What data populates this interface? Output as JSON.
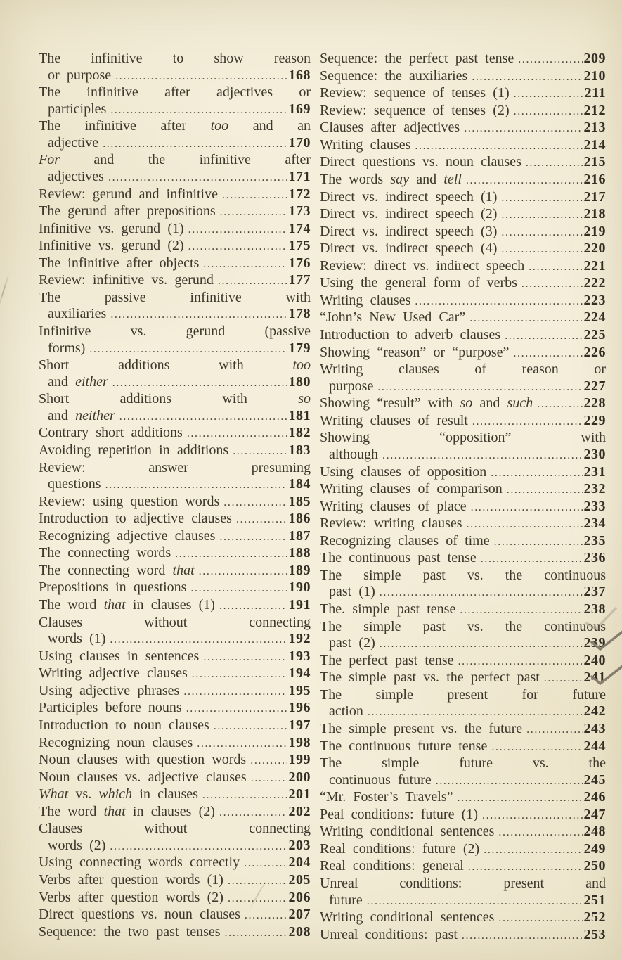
{
  "page": {
    "kind": "book-table-of-contents-scan",
    "paper_color": "#f2ecd8",
    "ink_color": "#3e372c",
    "page_number_color": "#332d24",
    "checkmark_color": "#877d6c"
  },
  "toc": {
    "left_column": [
      {
        "lines": [
          "The infinitive to show reason",
          "or purpose"
        ],
        "page": "168"
      },
      {
        "lines": [
          "The infinitive after adjectives or",
          "participles"
        ],
        "page": "169"
      },
      {
        "lines": [
          "The infinitive after *too* and an",
          "adjective"
        ],
        "page": "170"
      },
      {
        "lines": [
          "*For* and the infinitive after",
          "adjectives"
        ],
        "page": "171"
      },
      {
        "lines": [
          "Review: gerund and infinitive"
        ],
        "page": "172"
      },
      {
        "lines": [
          "The gerund after prepositions"
        ],
        "page": "173"
      },
      {
        "lines": [
          "Infinitive vs. gerund (1)"
        ],
        "page": "174"
      },
      {
        "lines": [
          "Infinitive vs. gerund (2)"
        ],
        "page": "175"
      },
      {
        "lines": [
          "The infinitive after objects"
        ],
        "page": "176"
      },
      {
        "lines": [
          "Review: infinitive vs. gerund"
        ],
        "page": "177"
      },
      {
        "lines": [
          "The passive infinitive with",
          "auxiliaries"
        ],
        "page": "178"
      },
      {
        "lines": [
          "Infinitive vs. gerund (passive",
          "forms)"
        ],
        "page": "179"
      },
      {
        "lines": [
          "Short additions with *too*",
          "and *either*"
        ],
        "page": "180"
      },
      {
        "lines": [
          "Short additions with *so*",
          "and *neither*"
        ],
        "page": "181"
      },
      {
        "lines": [
          "Contrary short additions"
        ],
        "page": "182"
      },
      {
        "lines": [
          "Avoiding repetition in additions"
        ],
        "page": "183"
      },
      {
        "lines": [
          "Review: answer presuming",
          "questions"
        ],
        "page": "184"
      },
      {
        "lines": [
          "Review: using question words"
        ],
        "page": "185"
      },
      {
        "lines": [
          "Introduction to adjective clauses"
        ],
        "page": "186"
      },
      {
        "lines": [
          "Recognizing adjective clauses"
        ],
        "page": "187"
      },
      {
        "lines": [
          "The connecting words"
        ],
        "page": "188"
      },
      {
        "lines": [
          "The connecting word *that*"
        ],
        "page": "189"
      },
      {
        "lines": [
          "Prepositions in questions"
        ],
        "page": "190"
      },
      {
        "lines": [
          "The word *that* in clauses (1)"
        ],
        "page": "191"
      },
      {
        "lines": [
          "Clauses without connecting",
          "words (1)"
        ],
        "page": "192"
      },
      {
        "lines": [
          "Using clauses in sentences"
        ],
        "page": "193"
      },
      {
        "lines": [
          "Writing adjective clauses"
        ],
        "page": "194"
      },
      {
        "lines": [
          "Using adjective phrases"
        ],
        "page": "195"
      },
      {
        "lines": [
          "Participles before nouns"
        ],
        "page": "196"
      },
      {
        "lines": [
          "Introduction to noun clauses"
        ],
        "page": "197"
      },
      {
        "lines": [
          "Recognizing noun clauses"
        ],
        "page": "198"
      },
      {
        "lines": [
          "Noun clauses with question words"
        ],
        "page": "199"
      },
      {
        "lines": [
          "Noun clauses vs. adjective clauses"
        ],
        "page": "200"
      },
      {
        "lines": [
          "*What* vs. *which* in clauses"
        ],
        "page": "201"
      },
      {
        "lines": [
          "The word *that* in clauses (2)"
        ],
        "page": "202"
      },
      {
        "lines": [
          "Clauses without connecting",
          "words (2)"
        ],
        "page": "203"
      },
      {
        "lines": [
          "Using connecting words correctly"
        ],
        "page": "204"
      },
      {
        "lines": [
          "Verbs after question words (1)"
        ],
        "page": "205"
      },
      {
        "lines": [
          "Verbs after question words (2)"
        ],
        "page": "206"
      },
      {
        "lines": [
          "Direct questions vs. noun clauses"
        ],
        "page": "207"
      },
      {
        "lines": [
          "Sequence: the two past tenses"
        ],
        "page": "208"
      }
    ],
    "right_column": [
      {
        "lines": [
          "Sequence: the perfect past tense"
        ],
        "page": "209"
      },
      {
        "lines": [
          "Sequence: the auxiliaries"
        ],
        "page": "210"
      },
      {
        "lines": [
          "Review: sequence of tenses (1)"
        ],
        "page": "211"
      },
      {
        "lines": [
          "Review: sequence of tenses (2)"
        ],
        "page": "212"
      },
      {
        "lines": [
          "Clauses after adjectives"
        ],
        "page": "213"
      },
      {
        "lines": [
          "Writing clauses"
        ],
        "page": "214"
      },
      {
        "lines": [
          "Direct questions vs. noun clauses"
        ],
        "page": "215"
      },
      {
        "lines": [
          "The words *say* and *tell*"
        ],
        "page": "216"
      },
      {
        "lines": [
          "Direct vs. indirect speech (1)"
        ],
        "page": "217"
      },
      {
        "lines": [
          "Direct vs. indirect speech (2)"
        ],
        "page": "218"
      },
      {
        "lines": [
          "Direct vs. indirect speech (3)"
        ],
        "page": "219"
      },
      {
        "lines": [
          "Direct vs. indirect speech (4)"
        ],
        "page": "220"
      },
      {
        "lines": [
          "Review: direct vs. indirect speech"
        ],
        "page": "221"
      },
      {
        "lines": [
          "Using the general form of verbs"
        ],
        "page": "222"
      },
      {
        "lines": [
          "Writing clauses"
        ],
        "page": "223"
      },
      {
        "lines": [
          "“John’s New Used Car”"
        ],
        "page": "224"
      },
      {
        "lines": [
          "Introduction to adverb clauses"
        ],
        "page": "225"
      },
      {
        "lines": [
          "Showing “reason” or “purpose”"
        ],
        "page": "226"
      },
      {
        "lines": [
          "Writing clauses of reason or",
          "purpose"
        ],
        "page": "227"
      },
      {
        "lines": [
          "Showing “result” with *so* and *such*"
        ],
        "page": "228"
      },
      {
        "lines": [
          "Writing clauses of result"
        ],
        "page": "229"
      },
      {
        "lines": [
          "Showing “opposition” with",
          "although"
        ],
        "page": "230"
      },
      {
        "lines": [
          "Using clauses of opposition"
        ],
        "page": "231"
      },
      {
        "lines": [
          "Writing clauses of comparison"
        ],
        "page": "232"
      },
      {
        "lines": [
          "Writing clauses of place"
        ],
        "page": "233"
      },
      {
        "lines": [
          "Review: writing clauses"
        ],
        "page": "234"
      },
      {
        "lines": [
          "Recognizing clauses of time"
        ],
        "page": "235"
      },
      {
        "lines": [
          "The continuous past tense"
        ],
        "page": "236"
      },
      {
        "lines": [
          "The simple past vs. the continuous",
          "past (1)"
        ],
        "page": "237"
      },
      {
        "lines": [
          "The. simple past tense"
        ],
        "page": "238",
        "faint_checkmark": true
      },
      {
        "lines": [
          "The simple past vs. the continuous",
          "past (2)"
        ],
        "page": "239",
        "checkmark": true
      },
      {
        "lines": [
          "The perfect past tense"
        ],
        "page": "240"
      },
      {
        "lines": [
          "The simple past vs. the perfect past"
        ],
        "page": "241",
        "checkmark": true
      },
      {
        "lines": [
          "The simple present for future",
          "action"
        ],
        "page": "242"
      },
      {
        "lines": [
          "The simple present vs. the future"
        ],
        "page": "243"
      },
      {
        "lines": [
          "The continuous future tense"
        ],
        "page": "244"
      },
      {
        "lines": [
          "The simple future vs. the",
          "continuous future"
        ],
        "page": "245"
      },
      {
        "lines": [
          "“Mr. Foster’s Travels”"
        ],
        "page": "246"
      },
      {
        "lines": [
          "Peal conditions: future (1)"
        ],
        "page": "247"
      },
      {
        "lines": [
          "Writing conditional sentences"
        ],
        "page": "248"
      },
      {
        "lines": [
          "Real conditions: future (2)"
        ],
        "page": "249"
      },
      {
        "lines": [
          "Real conditions: general"
        ],
        "page": "250"
      },
      {
        "lines": [
          "Unreal conditions: present and",
          "future"
        ],
        "page": "251"
      },
      {
        "lines": [
          "Writing conditional sentences"
        ],
        "page": "252"
      },
      {
        "lines": [
          "Unreal conditions: past"
        ],
        "page": "253"
      }
    ]
  }
}
